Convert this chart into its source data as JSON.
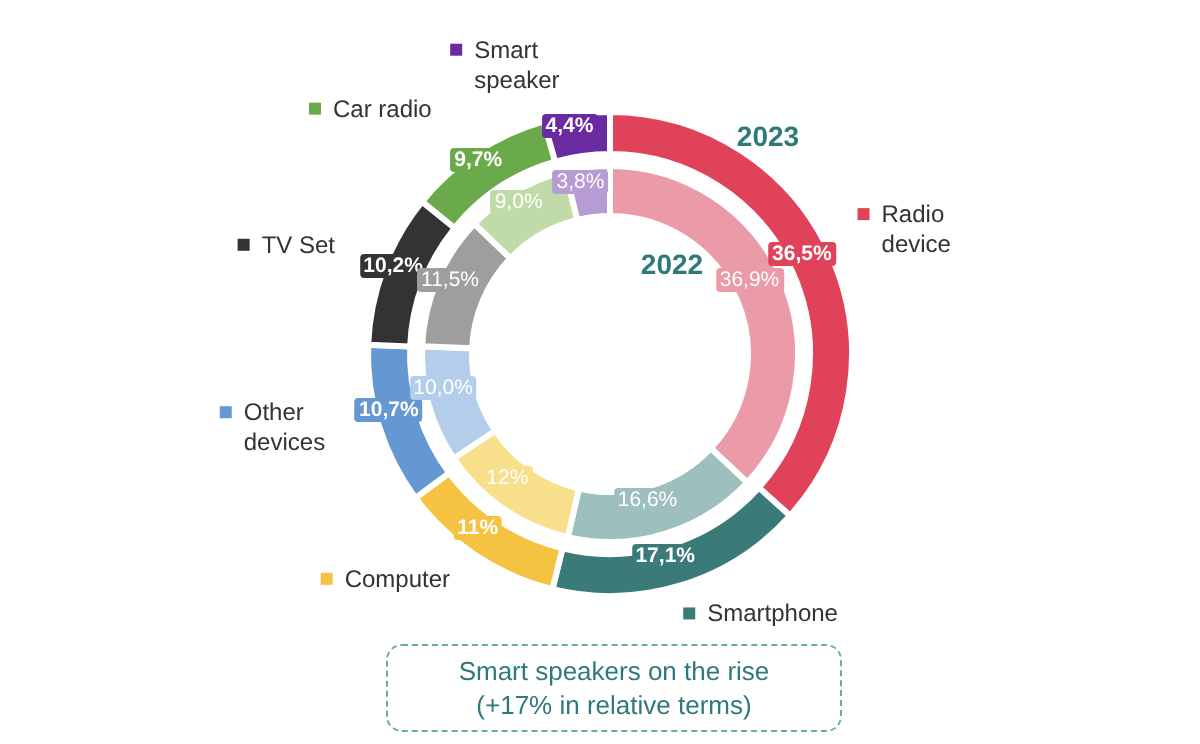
{
  "chart_data": {
    "type": "donut",
    "categories": [
      "Radio device",
      "Smartphone",
      "Computer",
      "Other devices",
      "TV Set",
      "Car radio",
      "Smart speaker"
    ],
    "series": [
      {
        "name": "2023",
        "values": [
          36.5,
          17.1,
          11,
          10.7,
          10.2,
          9.7,
          4.4
        ],
        "value_labels": [
          "36,5%",
          "17,1%",
          "11%",
          "10,7%",
          "10,2%",
          "9,7%",
          "4,4%"
        ],
        "colors": [
          "#e0425a",
          "#3a7a78",
          "#f5c242",
          "#6598d2",
          "#333333",
          "#6aaa4a",
          "#6a2aa0"
        ]
      },
      {
        "name": "2022",
        "values": [
          36.9,
          16.6,
          12,
          10.0,
          11.5,
          9.0,
          3.8
        ],
        "value_labels": [
          "36,9%",
          "16,6%",
          "12%",
          "10,0%",
          "11,5%",
          "9,0%",
          "3,8%"
        ],
        "colors": [
          "#eb9aa8",
          "#9dbfbd",
          "#f8df8c",
          "#b3cdeb",
          "#9e9e9e",
          "#c1dba8",
          "#b79bd3"
        ]
      }
    ],
    "legend": "left",
    "annotations": [
      "Smart speakers on the rise (+17% in relative terms)"
    ]
  }
}
